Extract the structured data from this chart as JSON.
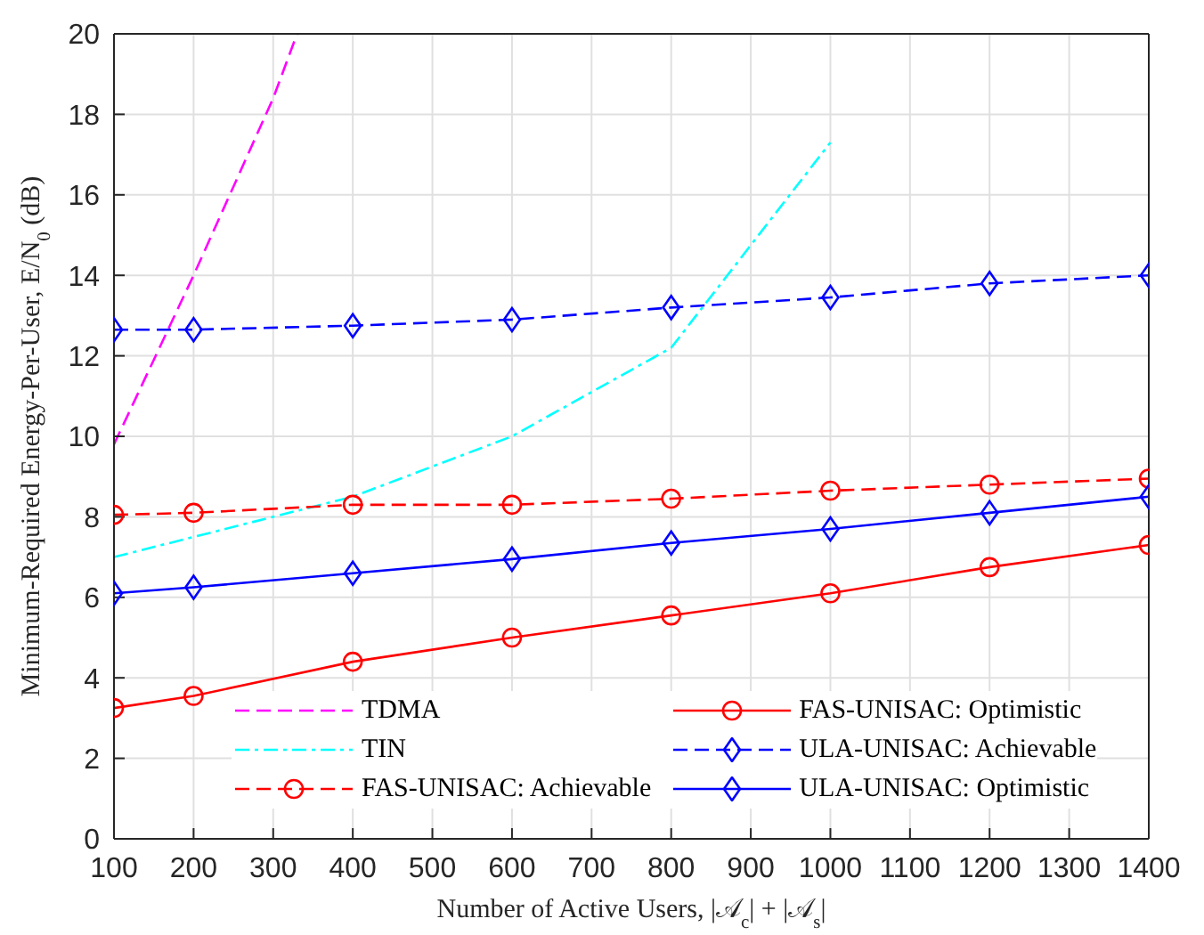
{
  "chart_data": {
    "type": "line",
    "xlabel": "Number of Active Users, |𝒜$_{c}$| + |𝒜$_{s}$|",
    "ylabel": "Minimum-Required Energy-Per-User, E/N$_{0}$ (dB)",
    "x": [
      100,
      200,
      400,
      600,
      800,
      1000,
      1200,
      1400
    ],
    "series": [
      {
        "name": "TDMA",
        "color": "#ff00ff",
        "line_style": "dashed",
        "marker": "none",
        "x": [
          100,
          200,
          300,
          330
        ],
        "values": [
          9.8,
          14.0,
          18.4,
          20.0
        ]
      },
      {
        "name": "TIN",
        "color": "#00ffff",
        "line_style": "dashdot",
        "marker": "none",
        "x": [
          100,
          200,
          400,
          600,
          800,
          1000
        ],
        "values": [
          7.0,
          7.5,
          8.5,
          10.0,
          12.2,
          17.3
        ]
      },
      {
        "name": "FAS-UNISAC: Achievable",
        "color": "#ff0000",
        "line_style": "dashed",
        "marker": "circle",
        "values": [
          8.05,
          8.1,
          8.3,
          8.3,
          8.45,
          8.65,
          8.8,
          8.95
        ]
      },
      {
        "name": "FAS-UNISAC: Optimistic",
        "color": "#ff0000",
        "line_style": "solid",
        "marker": "circle",
        "values": [
          3.25,
          3.55,
          4.4,
          5.0,
          5.55,
          6.1,
          6.75,
          7.3
        ]
      },
      {
        "name": "ULA-UNISAC: Achievable",
        "color": "#0000ff",
        "line_style": "dashed",
        "marker": "diamond",
        "values": [
          12.65,
          12.65,
          12.75,
          12.9,
          13.2,
          13.45,
          13.8,
          14.0
        ]
      },
      {
        "name": "ULA-UNISAC: Optimistic",
        "color": "#0000ff",
        "line_style": "solid",
        "marker": "diamond",
        "values": [
          6.1,
          6.25,
          6.6,
          6.95,
          7.35,
          7.7,
          8.1,
          8.5
        ]
      }
    ],
    "xlim": [
      100,
      1400
    ],
    "xticks": [
      100,
      200,
      300,
      400,
      500,
      600,
      700,
      800,
      900,
      1000,
      1100,
      1200,
      1300,
      1400
    ],
    "ylim": [
      0,
      20
    ],
    "yticks": [
      0,
      2,
      4,
      6,
      8,
      10,
      12,
      14,
      16,
      18,
      20
    ],
    "grid": true,
    "legend": "bottom"
  }
}
